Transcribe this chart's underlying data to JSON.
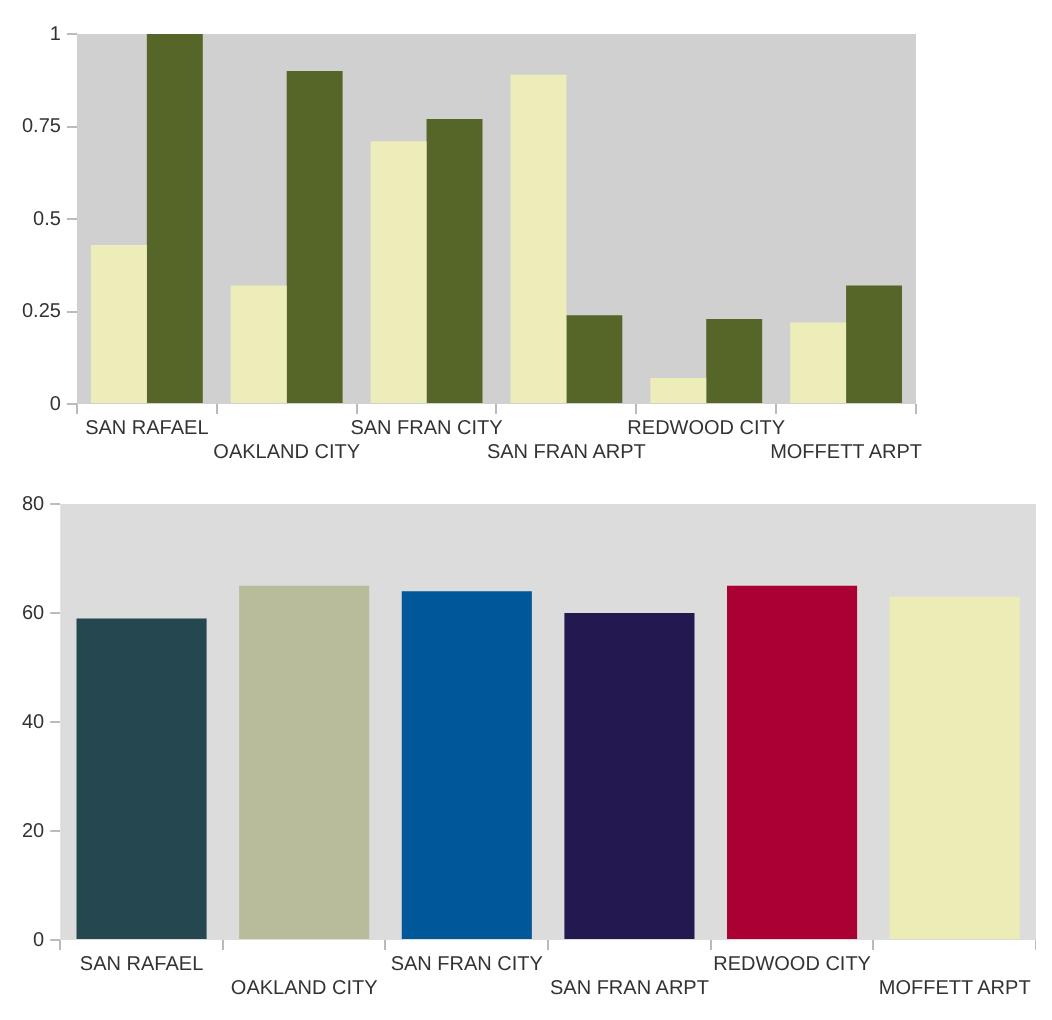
{
  "chart_data": [
    {
      "type": "bar",
      "categories": [
        "SAN RAFAEL",
        "OAKLAND CITY",
        "SAN FRAN CITY",
        "SAN FRAN ARPT",
        "REDWOOD CITY",
        "MOFFETT ARPT"
      ],
      "series": [
        {
          "color": "#ecedb8",
          "values": [
            0.43,
            0.32,
            0.71,
            0.89,
            0.07,
            0.22
          ]
        },
        {
          "color": "#556628",
          "values": [
            1.0,
            0.9,
            0.77,
            0.24,
            0.23,
            0.32
          ]
        }
      ],
      "ylim": [
        0,
        1
      ],
      "yticks": [
        0,
        0.25,
        0.5,
        0.75,
        1
      ],
      "grid": false,
      "legend": false
    },
    {
      "type": "bar",
      "categories": [
        "SAN RAFAEL",
        "OAKLAND CITY",
        "SAN FRAN CITY",
        "SAN FRAN ARPT",
        "REDWOOD CITY",
        "MOFFETT ARPT"
      ],
      "values": [
        59,
        65,
        64,
        60,
        65,
        63
      ],
      "colors": [
        "#25474f",
        "#b8bc9a",
        "#00579a",
        "#241851",
        "#ab0033",
        "#ececb7"
      ],
      "ylim": [
        0,
        80
      ],
      "yticks": [
        0,
        20,
        40,
        60,
        80
      ],
      "grid": false,
      "legend": false
    }
  ]
}
